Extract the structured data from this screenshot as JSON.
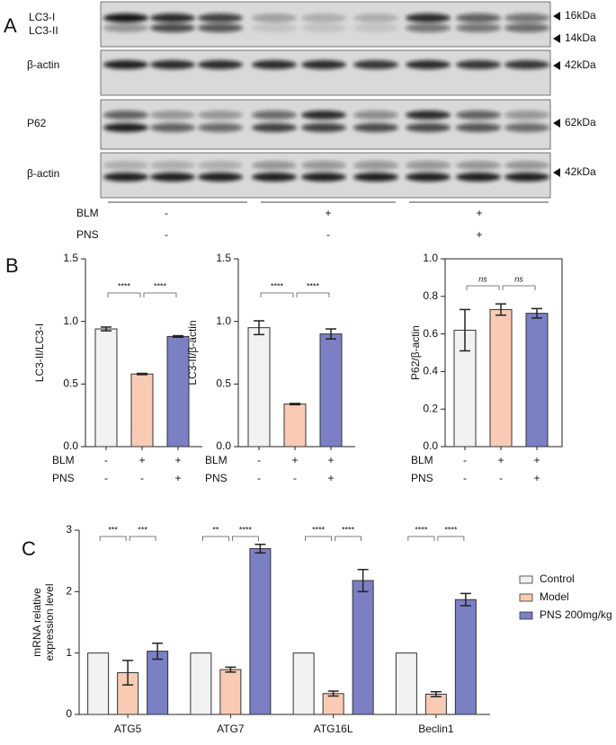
{
  "western_blot": {
    "panel": "A",
    "rows": [
      {
        "labels": [
          "LC3-I",
          "LC3-II"
        ],
        "markers": [
          "16kDa",
          "14kDa"
        ]
      },
      {
        "labels": [
          "β-actin"
        ],
        "markers": [
          "42kDa"
        ]
      },
      {
        "labels": [
          "P62"
        ],
        "markers": [
          "62kDa"
        ]
      },
      {
        "labels": [
          "β-actin"
        ],
        "markers": [
          "42kDa"
        ]
      }
    ],
    "conditions": [
      {
        "label": "BLM",
        "marks": [
          "-",
          "+",
          "+"
        ]
      },
      {
        "label": "PNS",
        "marks": [
          "-",
          "-",
          "+"
        ]
      }
    ]
  },
  "chart_data": [
    {
      "type": "bar",
      "panel": "B",
      "ylabel": "LC3-II/LC3-I",
      "categories": [
        null,
        null,
        null
      ],
      "values": [
        0.94,
        0.58,
        0.88
      ],
      "errors": [
        0.015,
        0.005,
        0.006
      ],
      "colors": [
        "#f2f2f2",
        "#f9cbb4",
        "#7b7fc4"
      ],
      "ylim": [
        0,
        1.5
      ],
      "yticks": [
        {
          "value": 0,
          "label": "0.0"
        },
        {
          "value": 0.5,
          "label": "0.5"
        },
        {
          "value": 1,
          "label": "1.0"
        },
        {
          "value": 1.5,
          "label": "1.5"
        }
      ],
      "annotations": [
        "****",
        "****"
      ],
      "rows": [
        {
          "label": "BLM",
          "marks": [
            "-",
            "+",
            "+"
          ]
        },
        {
          "label": "PNS",
          "marks": [
            "-",
            "-",
            "+"
          ]
        }
      ]
    },
    {
      "type": "bar",
      "ylabel": "LC3-II/β-actin",
      "categories": [
        null,
        null,
        null
      ],
      "values": [
        0.95,
        0.34,
        0.9
      ],
      "errors": [
        0.055,
        0.005,
        0.04
      ],
      "colors": [
        "#f2f2f2",
        "#f9cbb4",
        "#7b7fc4"
      ],
      "ylim": [
        0,
        1.5
      ],
      "yticks": [
        {
          "value": 0,
          "label": "0.0"
        },
        {
          "value": 0.5,
          "label": "0.5"
        },
        {
          "value": 1,
          "label": "1.0"
        },
        {
          "value": 1.5,
          "label": "1.5"
        }
      ],
      "annotations": [
        "****",
        "****"
      ],
      "rows": [
        {
          "label": "BLM",
          "marks": [
            "-",
            "+",
            "+"
          ]
        },
        {
          "label": "PNS",
          "marks": [
            "-",
            "-",
            "+"
          ]
        }
      ]
    },
    {
      "type": "bar",
      "ylabel": "P62/β-actin",
      "categories": [
        null,
        null,
        null
      ],
      "values": [
        0.62,
        0.73,
        0.71
      ],
      "errors": [
        0.11,
        0.03,
        0.025
      ],
      "colors": [
        "#f2f2f2",
        "#f9cbb4",
        "#7b7fc4"
      ],
      "ylim": [
        0,
        1
      ],
      "yticks": [
        {
          "value": 0,
          "label": "0.0"
        },
        {
          "value": 0.2,
          "label": "0.2"
        },
        {
          "value": 0.4,
          "label": "0.4"
        },
        {
          "value": 0.6,
          "label": "0.6"
        },
        {
          "value": 0.8,
          "label": "0.8"
        },
        {
          "value": 1,
          "label": "1.0"
        }
      ],
      "annotations": [
        "ns",
        "ns"
      ],
      "rows": [
        {
          "label": "BLM",
          "marks": [
            "-",
            "+",
            "+"
          ]
        },
        {
          "label": "PNS",
          "marks": [
            "-",
            "-",
            "+"
          ]
        }
      ]
    },
    {
      "type": "grouped_bar",
      "panel": "C",
      "ylabel": [
        "mRNA relative",
        "expression level"
      ],
      "categories": [
        "ATG5",
        "ATG7",
        "ATG16L",
        "Beclin1"
      ],
      "series": [
        {
          "name": "Control",
          "color": "#f2f2f2",
          "values": [
            1,
            1,
            1,
            1
          ]
        },
        {
          "name": "Model",
          "color": "#f9cbb4",
          "values": [
            0.68,
            0.73,
            0.34,
            0.33
          ],
          "errors": [
            0.2,
            0.04,
            0.04,
            0.04
          ]
        },
        {
          "name": "PNS 200mg/kg",
          "color": "#7b7fc4",
          "values": [
            1.03,
            2.7,
            2.18,
            1.87
          ],
          "errors": [
            0.13,
            0.07,
            0.18,
            0.1
          ]
        }
      ],
      "ylim": [
        0,
        3
      ],
      "yticks": [
        0,
        1,
        2,
        3
      ],
      "legend": "right",
      "annotations": [
        [
          "***",
          "***"
        ],
        [
          "**",
          "****"
        ],
        [
          "****",
          "****"
        ],
        [
          "****",
          "****"
        ]
      ]
    }
  ]
}
